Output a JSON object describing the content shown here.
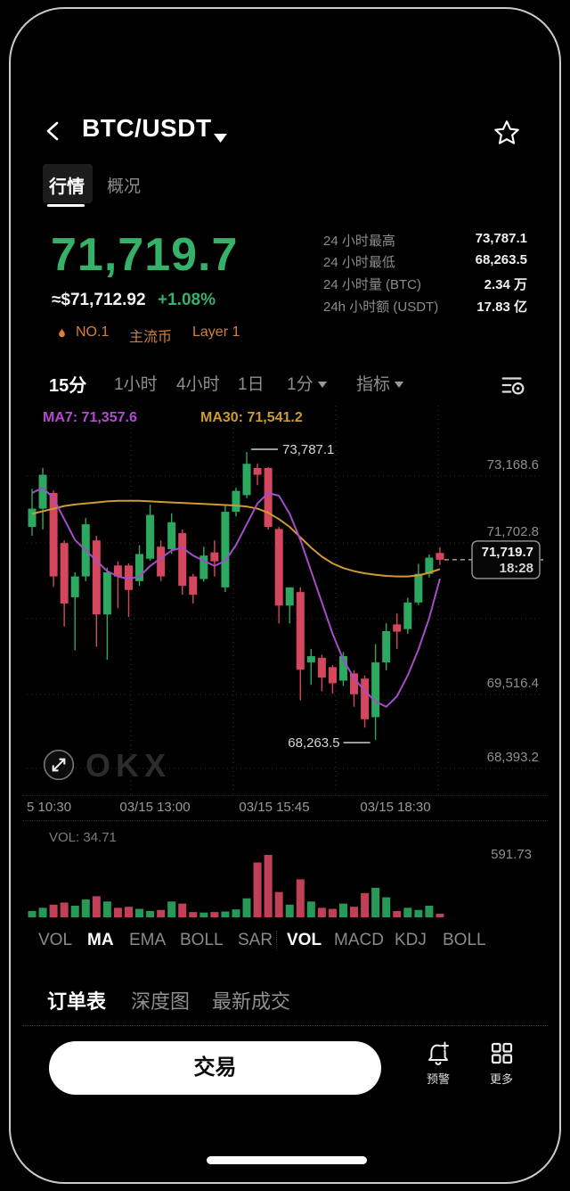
{
  "header": {
    "title": "BTC/USDT"
  },
  "tabs": {
    "market": "行情",
    "overview": "概况"
  },
  "price": {
    "last": "71,719.7",
    "fiat": "≈$71,712.92",
    "change": "+1.08%"
  },
  "stats": [
    {
      "label": "24 小时最高",
      "value": "73,787.1"
    },
    {
      "label": "24 小时最低",
      "value": "68,263.5"
    },
    {
      "label": "24 小时量 (BTC)",
      "value": "2.34 万"
    },
    {
      "label": "24h 小时额 (USDT)",
      "value": "17.83 亿"
    }
  ],
  "badges": [
    {
      "label": "NO.1"
    },
    {
      "label": "主流币"
    },
    {
      "label": "Layer 1"
    }
  ],
  "timeframes": [
    {
      "label": "15分",
      "active": true
    },
    {
      "label": "1小时"
    },
    {
      "label": "4小时"
    },
    {
      "label": "1日"
    },
    {
      "label": "1分"
    },
    {
      "label": "指标"
    }
  ],
  "chart_data": {
    "type": "candlestick",
    "interval": "15m",
    "ma7_label": "MA7: 71,357.6",
    "ma30_label": "MA30: 71,541.2",
    "high_annotation": "73,787.1",
    "low_annotation": "68,263.5",
    "current_price": "71,719.7",
    "current_time": "18:28",
    "price_high": 73787.1,
    "price_low": 68263.5,
    "y_axis_labels": [
      "73,168.6",
      "71,702.8",
      "69,516.4",
      "68,393.2"
    ],
    "x_axis_labels": [
      "5 10:30",
      "03/15 13:00",
      "03/15 15:45",
      "03/15 18:30"
    ],
    "candles": [
      [
        72350,
        73080,
        72180,
        72700
      ],
      [
        72700,
        73480,
        72300,
        73350
      ],
      [
        73000,
        73050,
        71200,
        71400
      ],
      [
        72040,
        72090,
        70440,
        70880
      ],
      [
        71000,
        71480,
        69980,
        71400
      ],
      [
        71400,
        72520,
        71310,
        72400
      ],
      [
        72090,
        72180,
        70050,
        70670
      ],
      [
        70670,
        71570,
        69800,
        71480
      ],
      [
        71610,
        71690,
        70790,
        71400
      ],
      [
        71610,
        71650,
        70620,
        71140
      ],
      [
        71310,
        72000,
        71220,
        71830
      ],
      [
        71740,
        72780,
        71700,
        72580
      ],
      [
        71970,
        72090,
        71310,
        71400
      ],
      [
        71920,
        72610,
        71830,
        72440
      ],
      [
        72230,
        72300,
        71050,
        71220
      ],
      [
        71400,
        71450,
        70880,
        71050
      ],
      [
        71350,
        71970,
        71300,
        71800
      ],
      [
        71860,
        72090,
        71400,
        71690
      ],
      [
        71190,
        72780,
        71100,
        72640
      ],
      [
        72640,
        73100,
        72550,
        73040
      ],
      [
        72960,
        73787.1,
        72900,
        73560
      ],
      [
        73480,
        73560,
        73150,
        73350
      ],
      [
        73480,
        73500,
        72300,
        72350
      ],
      [
        72310,
        72350,
        70500,
        70840
      ],
      [
        70840,
        71190,
        70500,
        71190
      ],
      [
        71100,
        71190,
        69025,
        69610
      ],
      [
        69750,
        70010,
        69320,
        69870
      ],
      [
        69840,
        69900,
        69200,
        69460
      ],
      [
        69660,
        69700,
        69150,
        69350
      ],
      [
        69400,
        69950,
        69300,
        69870
      ],
      [
        69540,
        69600,
        68900,
        69140
      ],
      [
        69440,
        69500,
        68500,
        68660
      ],
      [
        68700,
        70100,
        68263.5,
        69750
      ],
      [
        69750,
        70500,
        69600,
        70350
      ],
      [
        70480,
        70690,
        70010,
        70340
      ],
      [
        70390,
        70990,
        70300,
        70900
      ],
      [
        70900,
        71640,
        70850,
        71450
      ],
      [
        71450,
        71820,
        71380,
        71760
      ],
      [
        71850,
        71960,
        71620,
        71719.7
      ]
    ],
    "ma7": [
      73000,
      73100,
      72900,
      72500,
      72100,
      71900,
      71700,
      71500,
      71400,
      71350,
      71400,
      71600,
      71750,
      71900,
      71950,
      71800,
      71700,
      71600,
      71700,
      72000,
      72400,
      72800,
      73000,
      72950,
      72600,
      72100,
      71500,
      70900,
      70300,
      69800,
      69450,
      69200,
      69000,
      68900,
      69100,
      69500,
      70000,
      70600,
      71357.6
    ],
    "ma30": [
      72600,
      72650,
      72700,
      72750,
      72780,
      72800,
      72820,
      72840,
      72850,
      72850,
      72850,
      72840,
      72830,
      72820,
      72810,
      72800,
      72790,
      72780,
      72770,
      72760,
      72740,
      72700,
      72620,
      72500,
      72350,
      72150,
      71950,
      71780,
      71650,
      71560,
      71500,
      71460,
      71430,
      71410,
      71400,
      71400,
      71420,
      71470,
      71541.2
    ],
    "volumes": [
      60,
      90,
      120,
      140,
      110,
      170,
      200,
      150,
      90,
      100,
      80,
      60,
      70,
      150,
      130,
      50,
      45,
      50,
      55,
      75,
      180,
      520,
      591.73,
      240,
      120,
      360,
      150,
      90,
      80,
      130,
      100,
      230,
      280,
      190,
      60,
      90,
      70,
      110,
      34.71
    ],
    "vol_current": "VOL: 34.71",
    "vol_max": "591.73"
  },
  "indicator_tabs": [
    {
      "label": "VOL"
    },
    {
      "label": "MA",
      "active": true
    },
    {
      "label": "EMA"
    },
    {
      "label": "BOLL"
    },
    {
      "label": "SAR"
    },
    {
      "label": "VOL",
      "active": true
    },
    {
      "label": "MACD"
    },
    {
      "label": "KDJ"
    },
    {
      "label": "BOLL"
    }
  ],
  "order_tabs": [
    {
      "label": "订单表",
      "active": true
    },
    {
      "label": "深度图"
    },
    {
      "label": "最新成交"
    }
  ],
  "bottom_bar": {
    "trade": "交易",
    "alert": "预警",
    "more": "更多"
  },
  "watermark": "OKX",
  "colors": {
    "up": "#2ca860",
    "down": "#d5475f",
    "ma7": "#a64cc8",
    "ma30": "#cf9a2f",
    "accent_orange": "#d87f35",
    "price_green": "#35b16a"
  }
}
